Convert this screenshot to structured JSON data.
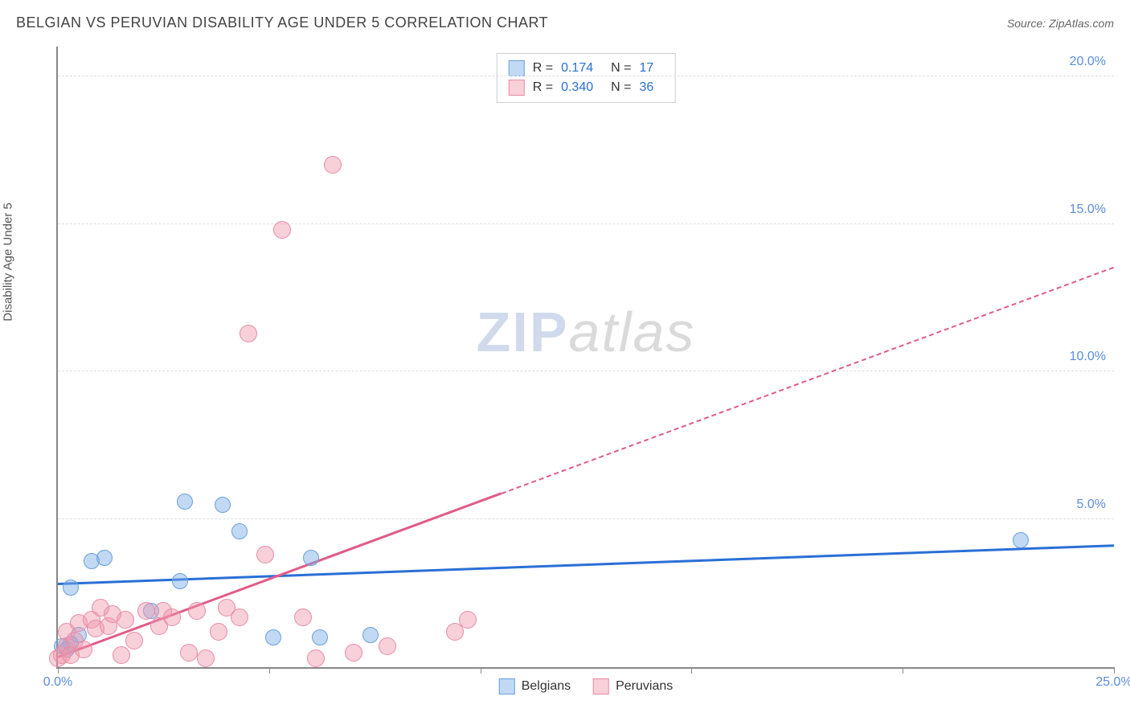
{
  "header": {
    "title": "BELGIAN VS PERUVIAN DISABILITY AGE UNDER 5 CORRELATION CHART",
    "source": "Source: ZipAtlas.com"
  },
  "chart": {
    "type": "scatter",
    "ylabel": "Disability Age Under 5",
    "xlim": [
      0,
      25
    ],
    "ylim": [
      0,
      21
    ],
    "xtick_positions": [
      0,
      5,
      10,
      15,
      20,
      25
    ],
    "xtick_labels": [
      "0.0%",
      "",
      "",
      "",
      "",
      "25.0%"
    ],
    "ytick_positions": [
      5,
      10,
      15,
      20
    ],
    "ytick_labels": [
      "5.0%",
      "10.0%",
      "15.0%",
      "20.0%"
    ],
    "grid_color": "#dddddd",
    "background_color": "#ffffff",
    "axis_color": "#888888",
    "tick_label_color": "#5b8dd8",
    "series": [
      {
        "name": "Belgians",
        "color_fill": "rgba(120,170,230,0.45)",
        "color_stroke": "#6aa0dd",
        "trend_color": "#2a6fd6",
        "R": "0.174",
        "N": "17",
        "trend": {
          "x1": 0,
          "y1": 2.8,
          "x2": 25,
          "y2": 4.1,
          "dash_after_x": 25
        },
        "marker_radius": 10,
        "points": [
          [
            0.1,
            0.7
          ],
          [
            0.2,
            0.6
          ],
          [
            0.3,
            0.8
          ],
          [
            0.3,
            2.7
          ],
          [
            0.5,
            1.1
          ],
          [
            0.8,
            3.6
          ],
          [
            1.1,
            3.7
          ],
          [
            2.2,
            1.9
          ],
          [
            2.9,
            2.9
          ],
          [
            3.0,
            5.6
          ],
          [
            3.9,
            5.5
          ],
          [
            4.3,
            4.6
          ],
          [
            5.1,
            1.0
          ],
          [
            6.0,
            3.7
          ],
          [
            6.2,
            1.0
          ],
          [
            7.4,
            1.1
          ],
          [
            22.8,
            4.3
          ]
        ]
      },
      {
        "name": "Peruvians",
        "color_fill": "rgba(240,150,170,0.45)",
        "color_stroke": "#e88aa5",
        "trend_color": "#e05b8a",
        "R": "0.340",
        "N": "36",
        "trend": {
          "x1": 0,
          "y1": 0.3,
          "x2": 25,
          "y2": 13.5,
          "dash_after_x": 10.5
        },
        "marker_radius": 11,
        "points": [
          [
            0.0,
            0.3
          ],
          [
            0.1,
            0.4
          ],
          [
            0.2,
            0.7
          ],
          [
            0.2,
            1.2
          ],
          [
            0.3,
            0.4
          ],
          [
            0.4,
            0.9
          ],
          [
            0.5,
            1.5
          ],
          [
            0.6,
            0.6
          ],
          [
            0.8,
            1.6
          ],
          [
            0.9,
            1.3
          ],
          [
            1.0,
            2.0
          ],
          [
            1.2,
            1.4
          ],
          [
            1.3,
            1.8
          ],
          [
            1.5,
            0.4
          ],
          [
            1.6,
            1.6
          ],
          [
            1.8,
            0.9
          ],
          [
            2.1,
            1.9
          ],
          [
            2.4,
            1.4
          ],
          [
            2.5,
            1.9
          ],
          [
            2.7,
            1.7
          ],
          [
            3.1,
            0.5
          ],
          [
            3.3,
            1.9
          ],
          [
            3.5,
            0.3
          ],
          [
            3.8,
            1.2
          ],
          [
            4.0,
            2.0
          ],
          [
            4.3,
            1.7
          ],
          [
            4.5,
            11.3
          ],
          [
            4.9,
            3.8
          ],
          [
            5.3,
            14.8
          ],
          [
            5.8,
            1.7
          ],
          [
            6.1,
            0.3
          ],
          [
            6.5,
            17.0
          ],
          [
            7.0,
            0.5
          ],
          [
            7.8,
            0.7
          ],
          [
            9.4,
            1.2
          ],
          [
            9.7,
            1.6
          ]
        ]
      }
    ],
    "legend_bottom": [
      "Belgians",
      "Peruvians"
    ],
    "watermark": {
      "part1": "ZIP",
      "part2": "atlas"
    }
  }
}
